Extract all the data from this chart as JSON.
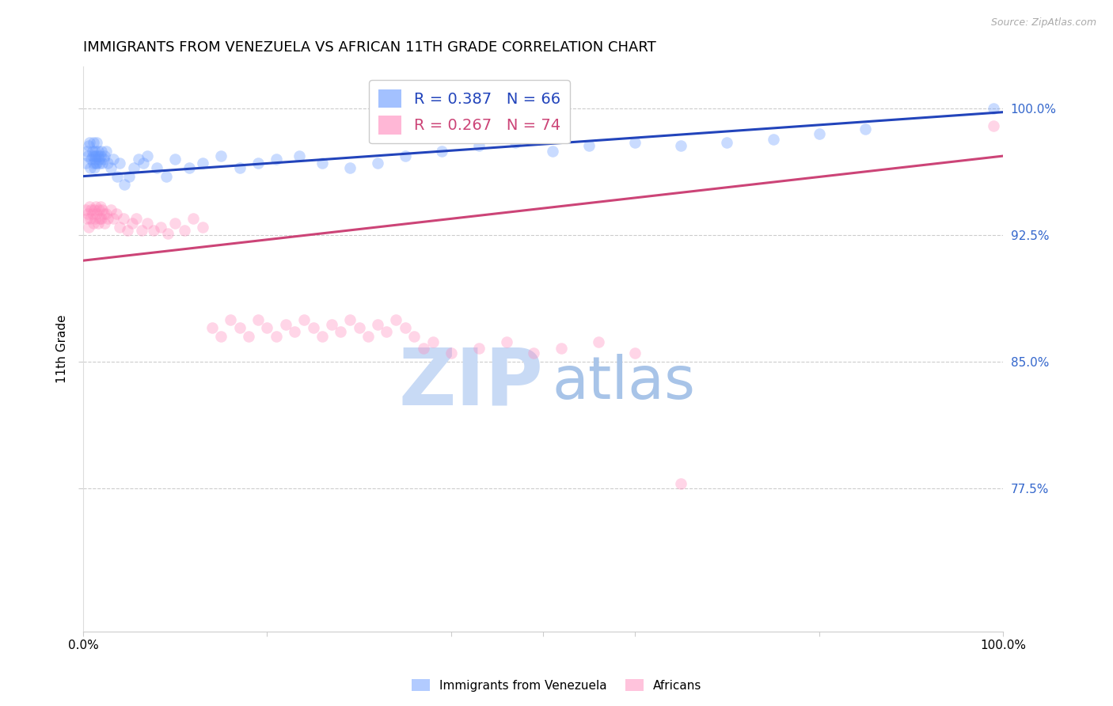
{
  "title": "IMMIGRANTS FROM VENEZUELA VS AFRICAN 11TH GRADE CORRELATION CHART",
  "source": "Source: ZipAtlas.com",
  "ylabel": "11th Grade",
  "ytick_labels": [
    "100.0%",
    "92.5%",
    "85.0%",
    "77.5%"
  ],
  "ytick_values": [
    1.0,
    0.925,
    0.85,
    0.775
  ],
  "xlim": [
    0.0,
    1.0
  ],
  "ylim": [
    0.69,
    1.025
  ],
  "legend_entries": [
    {
      "label": "R = 0.387   N = 66",
      "color": "#6699ff"
    },
    {
      "label": "R = 0.267   N = 74",
      "color": "#ff6699"
    }
  ],
  "legend_labels": [
    "Immigrants from Venezuela",
    "Africans"
  ],
  "blue_scatter_x": [
    0.003,
    0.004,
    0.005,
    0.006,
    0.007,
    0.008,
    0.009,
    0.01,
    0.01,
    0.011,
    0.011,
    0.012,
    0.012,
    0.013,
    0.013,
    0.014,
    0.014,
    0.015,
    0.015,
    0.016,
    0.016,
    0.017,
    0.018,
    0.019,
    0.02,
    0.021,
    0.022,
    0.023,
    0.025,
    0.027,
    0.03,
    0.033,
    0.037,
    0.04,
    0.045,
    0.05,
    0.055,
    0.06,
    0.065,
    0.07,
    0.08,
    0.09,
    0.1,
    0.115,
    0.13,
    0.15,
    0.17,
    0.19,
    0.21,
    0.235,
    0.26,
    0.29,
    0.32,
    0.35,
    0.39,
    0.43,
    0.47,
    0.51,
    0.55,
    0.6,
    0.65,
    0.7,
    0.75,
    0.8,
    0.85,
    0.99
  ],
  "blue_scatter_y": [
    0.968,
    0.975,
    0.972,
    0.978,
    0.98,
    0.965,
    0.97,
    0.972,
    0.975,
    0.968,
    0.98,
    0.965,
    0.972,
    0.97,
    0.975,
    0.968,
    0.972,
    0.98,
    0.968,
    0.972,
    0.975,
    0.97,
    0.968,
    0.972,
    0.975,
    0.968,
    0.97,
    0.972,
    0.975,
    0.968,
    0.965,
    0.97,
    0.96,
    0.968,
    0.955,
    0.96,
    0.965,
    0.97,
    0.968,
    0.972,
    0.965,
    0.96,
    0.97,
    0.965,
    0.968,
    0.972,
    0.965,
    0.968,
    0.97,
    0.972,
    0.968,
    0.965,
    0.968,
    0.972,
    0.975,
    0.978,
    0.98,
    0.975,
    0.978,
    0.98,
    0.978,
    0.98,
    0.982,
    0.985,
    0.988,
    1.0
  ],
  "pink_scatter_x": [
    0.003,
    0.004,
    0.005,
    0.006,
    0.007,
    0.008,
    0.009,
    0.01,
    0.011,
    0.012,
    0.013,
    0.014,
    0.015,
    0.016,
    0.017,
    0.018,
    0.019,
    0.02,
    0.021,
    0.022,
    0.023,
    0.025,
    0.027,
    0.03,
    0.033,
    0.036,
    0.04,
    0.044,
    0.048,
    0.053,
    0.058,
    0.064,
    0.07,
    0.077,
    0.084,
    0.092,
    0.1,
    0.11,
    0.12,
    0.13,
    0.14,
    0.15,
    0.16,
    0.17,
    0.18,
    0.19,
    0.2,
    0.21,
    0.22,
    0.23,
    0.24,
    0.25,
    0.26,
    0.27,
    0.28,
    0.29,
    0.3,
    0.31,
    0.32,
    0.33,
    0.34,
    0.35,
    0.36,
    0.37,
    0.38,
    0.4,
    0.43,
    0.46,
    0.49,
    0.52,
    0.56,
    0.6,
    0.65,
    0.99
  ],
  "pink_scatter_y": [
    0.94,
    0.935,
    0.938,
    0.93,
    0.942,
    0.935,
    0.94,
    0.938,
    0.932,
    0.94,
    0.935,
    0.942,
    0.938,
    0.932,
    0.94,
    0.935,
    0.942,
    0.935,
    0.94,
    0.938,
    0.932,
    0.938,
    0.935,
    0.94,
    0.935,
    0.938,
    0.93,
    0.935,
    0.928,
    0.932,
    0.935,
    0.928,
    0.932,
    0.928,
    0.93,
    0.926,
    0.932,
    0.928,
    0.935,
    0.93,
    0.87,
    0.865,
    0.875,
    0.87,
    0.865,
    0.875,
    0.87,
    0.865,
    0.872,
    0.868,
    0.875,
    0.87,
    0.865,
    0.872,
    0.868,
    0.875,
    0.87,
    0.865,
    0.872,
    0.868,
    0.875,
    0.87,
    0.865,
    0.858,
    0.862,
    0.855,
    0.858,
    0.862,
    0.855,
    0.858,
    0.862,
    0.855,
    0.778,
    0.99
  ],
  "blue_line_x": [
    0.0,
    1.0
  ],
  "blue_line_y": [
    0.96,
    0.998
  ],
  "pink_line_x": [
    0.0,
    1.0
  ],
  "pink_line_y": [
    0.91,
    0.972
  ],
  "blue_color": "#6699ff",
  "pink_color": "#ff88bb",
  "blue_line_color": "#2244bb",
  "pink_line_color": "#cc4477",
  "marker_size": 110,
  "marker_alpha": 0.35,
  "grid_color": "#cccccc",
  "title_fontsize": 13,
  "axis_label_fontsize": 11,
  "tick_fontsize": 11,
  "watermark_zip": "ZIP",
  "watermark_atlas": "atlas",
  "watermark_color_zip": "#c5d8f0",
  "watermark_color_atlas": "#c5d8f0",
  "watermark_fontsize": 72
}
